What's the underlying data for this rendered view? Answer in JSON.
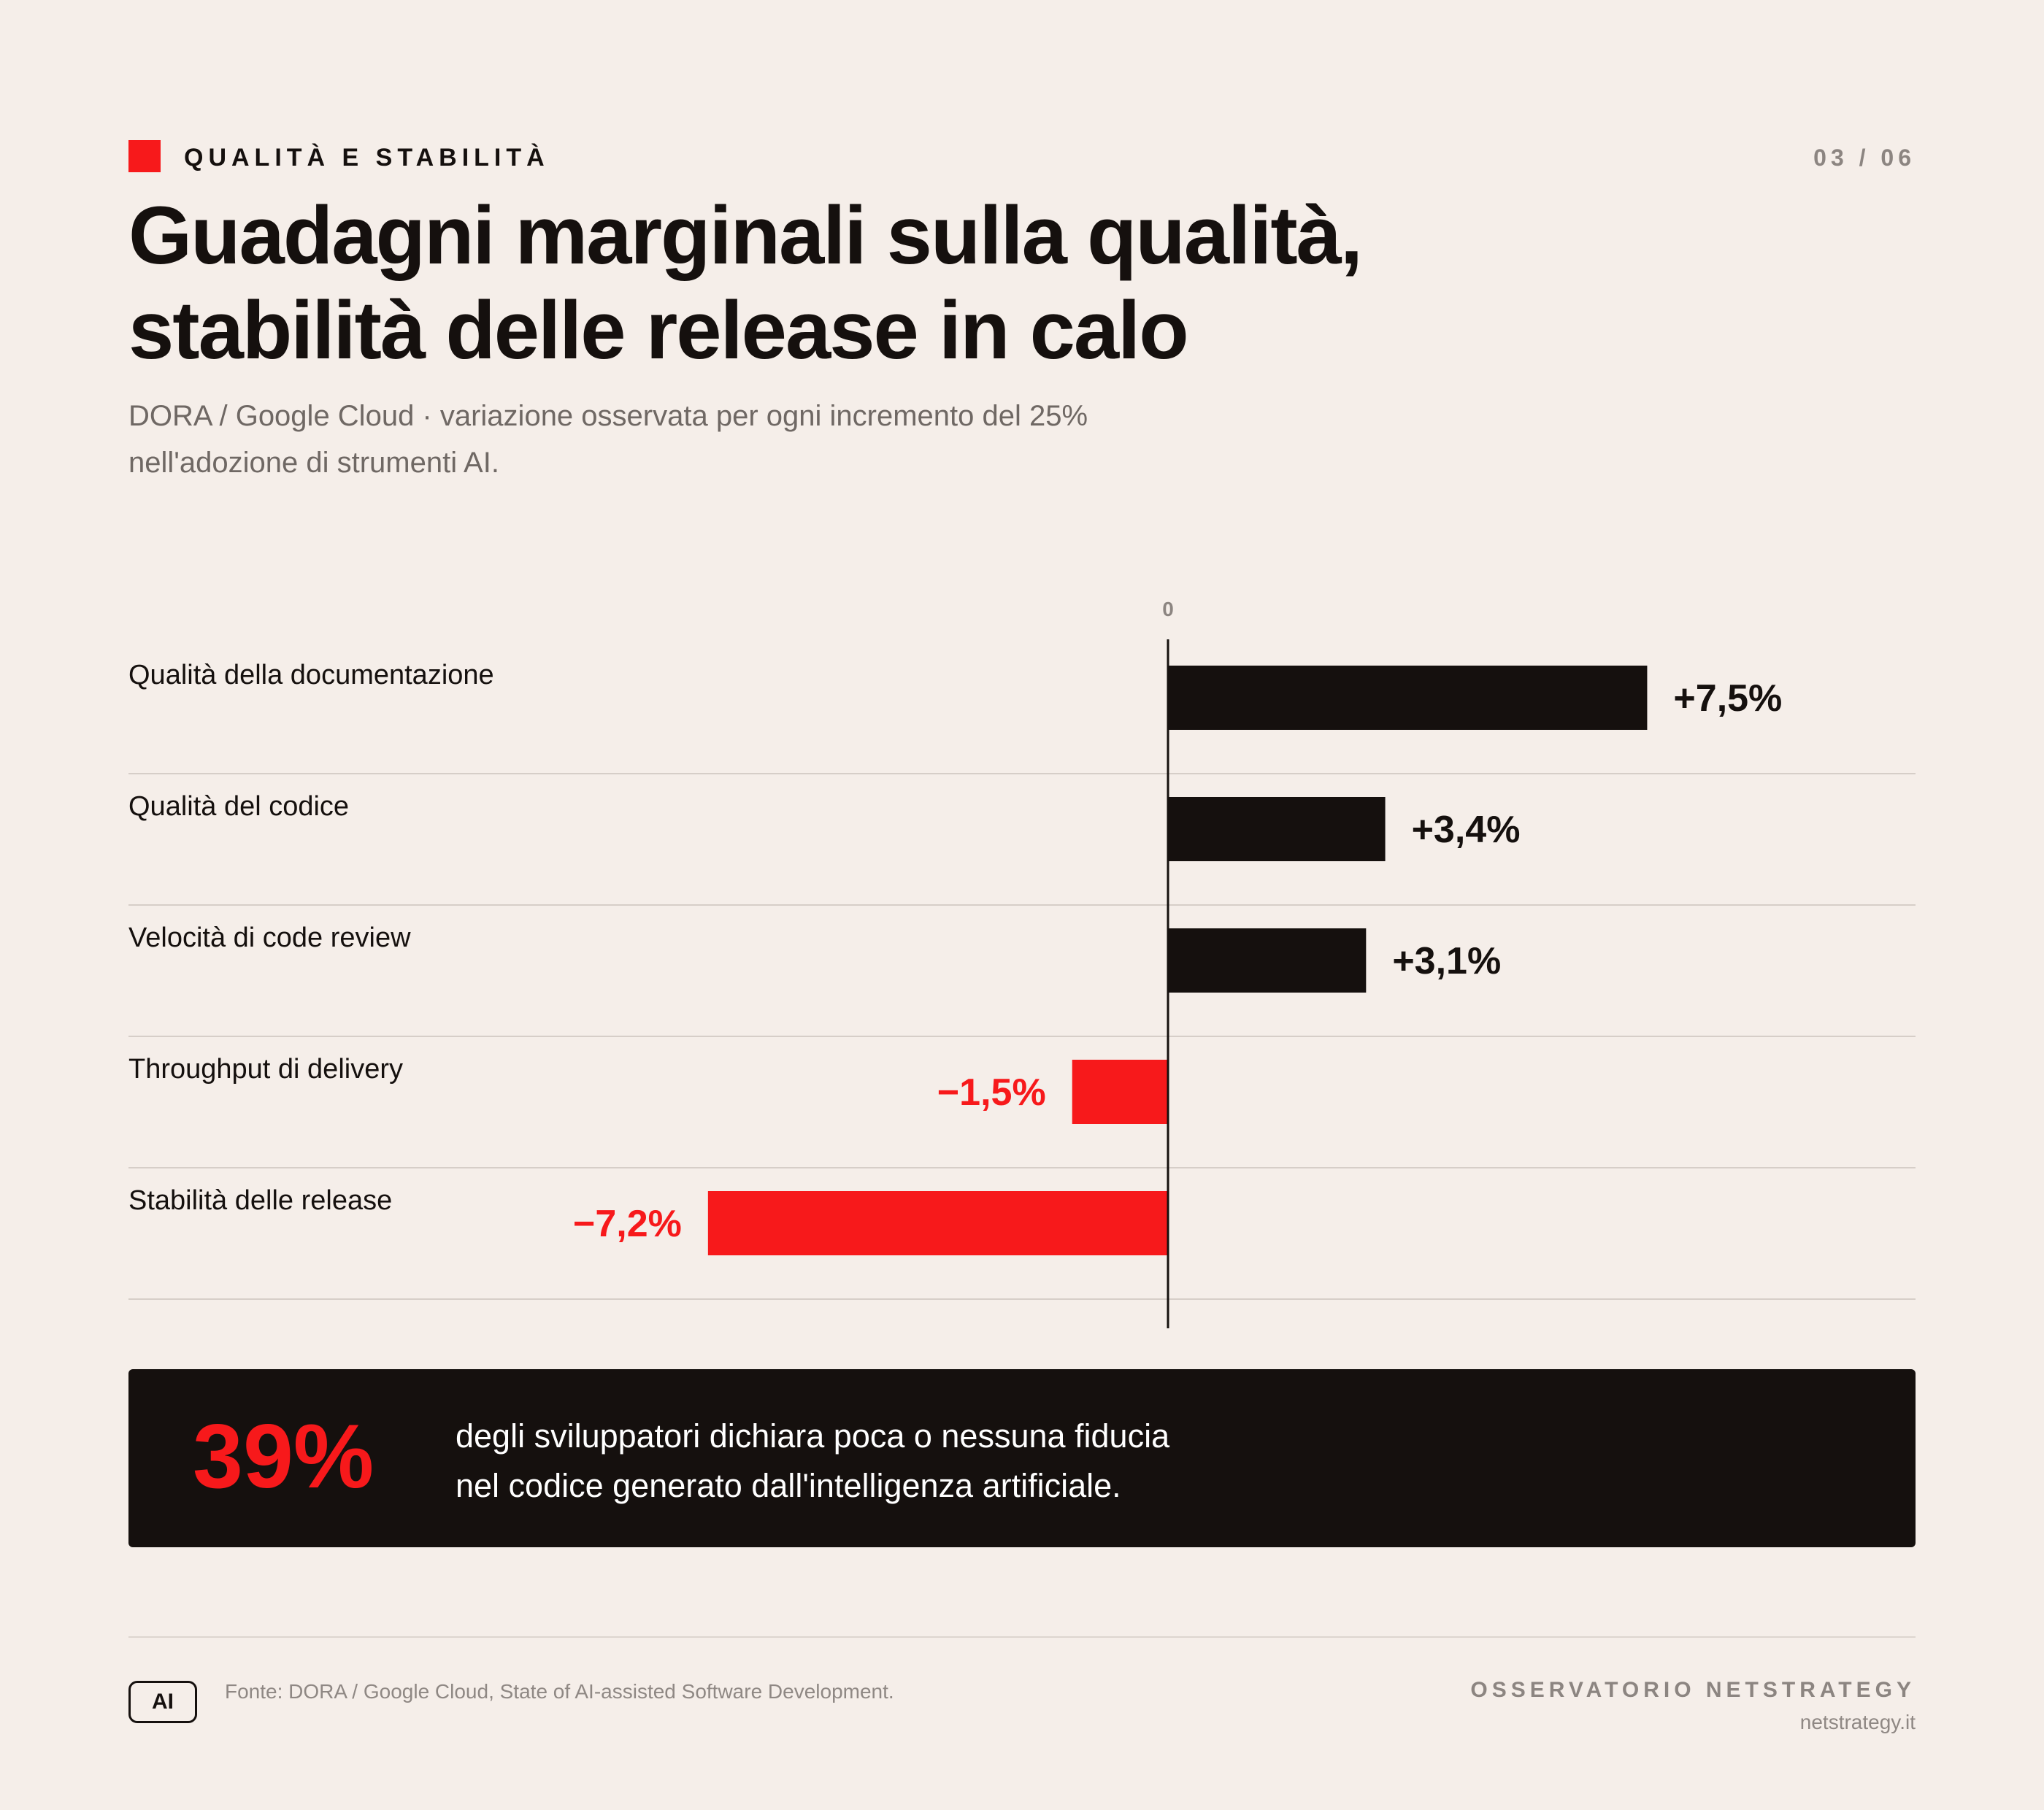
{
  "header": {
    "kicker": "QUALITÀ E STABILITÀ",
    "page_indicator": "03 / 06",
    "title_line1": "Guadagni marginali sulla qualità,",
    "title_line2": "stabilità delle release in calo",
    "subtitle_line1": "DORA / Google Cloud · variazione osservata per ogni incremento del 25%",
    "subtitle_line2": "nell'adozione di strumenti AI."
  },
  "chart_data": {
    "type": "bar",
    "orientation": "horizontal",
    "title": "",
    "xlabel": "",
    "ylabel": "",
    "zero_label": "0",
    "unit": "%",
    "categories": [
      "Qualità della documentazione",
      "Qualità del codice",
      "Velocità di code review",
      "Throughput di delivery",
      "Stabilità delle release"
    ],
    "values": [
      7.5,
      3.4,
      3.1,
      -1.5,
      -7.2
    ],
    "value_labels": [
      "+7,5%",
      "+3,4%",
      "+3,1%",
      "−1,5%",
      "−7,2%"
    ],
    "xlim": [
      -16.2,
      11.7
    ],
    "grid": false,
    "colors": {
      "positive": "#15100e",
      "negative": "#f7191b"
    }
  },
  "callout": {
    "stat": "39%",
    "text_line1": "degli sviluppatori dichiara poca o nessuna fiducia",
    "text_line2": "nel codice generato dall'intelligenza artificiale."
  },
  "footer": {
    "badge": "AI",
    "source": "Fonte: DORA / Google Cloud, State of AI-assisted Software Development.",
    "brand": "OSSERVATORIO NETSTRATEGY",
    "url": "netstrategy.it"
  },
  "colors": {
    "background": "#f5eee9",
    "ink": "#15100e",
    "accent": "#f7191b",
    "muted": "#8c8581"
  }
}
